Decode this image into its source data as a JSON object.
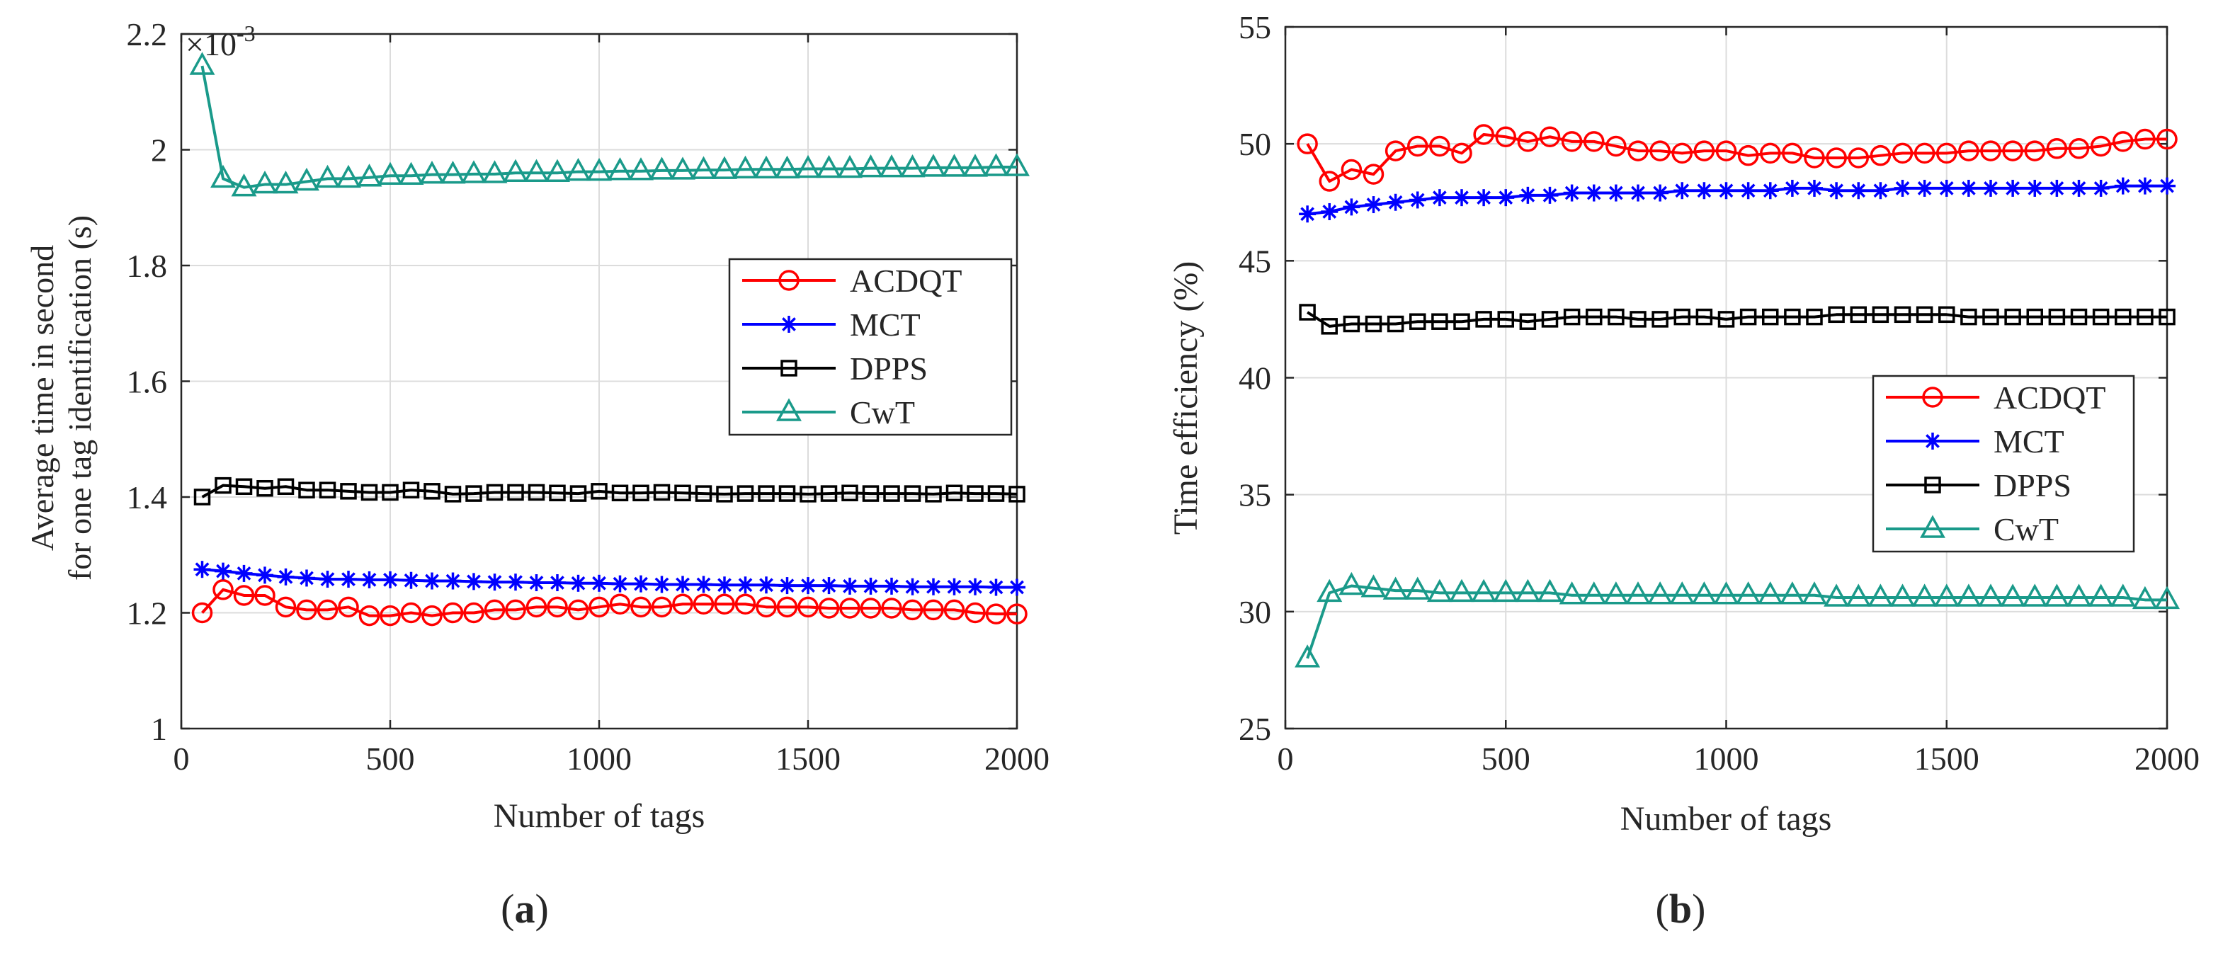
{
  "colors": {
    "ACDQT": "#ff0000",
    "MCT": "#0000ff",
    "DPPS": "#000000",
    "CwT": "#1a9a8a",
    "axis": "#262626",
    "grid": "#dcdcdc"
  },
  "chart_data": [
    {
      "type": "line",
      "panel_label": "a",
      "xlabel": "Number of tags",
      "ylabel_lines": [
        "Average time in second",
        "for one tag identification (s)"
      ],
      "y_exponent_label": "×10",
      "y_exponent_power": "-3",
      "xlim": [
        0,
        2000
      ],
      "ylim": [
        1.0,
        2.2
      ],
      "grid": true,
      "legend_position": "right-middle",
      "x_ticks": [
        0,
        500,
        1000,
        1500,
        2000
      ],
      "x_tick_labels": [
        "0",
        "500",
        "1000",
        "1500",
        "2000"
      ],
      "y_ticks": [
        1.0,
        1.2,
        1.4,
        1.6,
        1.8,
        2.0,
        2.2
      ],
      "y_tick_labels": [
        "1",
        "1.2",
        "1.4",
        "1.6",
        "1.8",
        "2",
        "2.2"
      ],
      "x": [
        50,
        100,
        150,
        200,
        250,
        300,
        350,
        400,
        450,
        500,
        550,
        600,
        650,
        700,
        750,
        800,
        850,
        900,
        950,
        1000,
        1050,
        1100,
        1150,
        1200,
        1250,
        1300,
        1350,
        1400,
        1450,
        1500,
        1550,
        1600,
        1650,
        1700,
        1750,
        1800,
        1850,
        1900,
        1950,
        2000
      ],
      "series": [
        {
          "name": "ACDQT",
          "marker": "circle",
          "values": [
            1.2,
            1.24,
            1.23,
            1.23,
            1.21,
            1.205,
            1.205,
            1.21,
            1.195,
            1.195,
            1.2,
            1.195,
            1.2,
            1.2,
            1.205,
            1.205,
            1.21,
            1.21,
            1.205,
            1.21,
            1.215,
            1.21,
            1.21,
            1.215,
            1.215,
            1.215,
            1.215,
            1.21,
            1.21,
            1.21,
            1.208,
            1.208,
            1.208,
            1.208,
            1.205,
            1.205,
            1.205,
            1.2,
            1.198,
            1.198
          ]
        },
        {
          "name": "MCT",
          "marker": "star",
          "values": [
            1.275,
            1.272,
            1.268,
            1.265,
            1.262,
            1.26,
            1.258,
            1.258,
            1.257,
            1.257,
            1.256,
            1.255,
            1.255,
            1.254,
            1.253,
            1.253,
            1.252,
            1.252,
            1.251,
            1.251,
            1.25,
            1.25,
            1.249,
            1.249,
            1.249,
            1.248,
            1.248,
            1.248,
            1.247,
            1.247,
            1.247,
            1.246,
            1.246,
            1.246,
            1.245,
            1.245,
            1.245,
            1.245,
            1.244,
            1.244
          ]
        },
        {
          "name": "DPPS",
          "marker": "square",
          "values": [
            1.4,
            1.42,
            1.418,
            1.415,
            1.418,
            1.412,
            1.412,
            1.41,
            1.408,
            1.408,
            1.412,
            1.41,
            1.405,
            1.406,
            1.408,
            1.408,
            1.408,
            1.407,
            1.406,
            1.41,
            1.407,
            1.407,
            1.408,
            1.407,
            1.406,
            1.405,
            1.406,
            1.406,
            1.406,
            1.405,
            1.406,
            1.407,
            1.406,
            1.406,
            1.406,
            1.405,
            1.407,
            1.406,
            1.406,
            1.405
          ]
        },
        {
          "name": "CwT",
          "marker": "triangle",
          "values": [
            2.145,
            1.95,
            1.935,
            1.94,
            1.94,
            1.945,
            1.95,
            1.95,
            1.952,
            1.955,
            1.955,
            1.957,
            1.957,
            1.958,
            1.958,
            1.96,
            1.96,
            1.96,
            1.962,
            1.962,
            1.963,
            1.963,
            1.964,
            1.964,
            1.965,
            1.965,
            1.966,
            1.966,
            1.966,
            1.967,
            1.967,
            1.967,
            1.968,
            1.968,
            1.968,
            1.969,
            1.969,
            1.969,
            1.97,
            1.97
          ]
        }
      ]
    },
    {
      "type": "line",
      "panel_label": "b",
      "xlabel": "Number of tags",
      "ylabel_lines": [
        "Time efficiency (%)"
      ],
      "xlim": [
        0,
        2000
      ],
      "ylim": [
        25,
        55
      ],
      "grid": true,
      "legend_position": "right-middle",
      "x_ticks": [
        0,
        500,
        1000,
        1500,
        2000
      ],
      "x_tick_labels": [
        "0",
        "500",
        "1000",
        "1500",
        "2000"
      ],
      "y_ticks": [
        25,
        30,
        35,
        40,
        45,
        50,
        55
      ],
      "y_tick_labels": [
        "25",
        "30",
        "35",
        "40",
        "45",
        "50",
        "55"
      ],
      "x": [
        50,
        100,
        150,
        200,
        250,
        300,
        350,
        400,
        450,
        500,
        550,
        600,
        650,
        700,
        750,
        800,
        850,
        900,
        950,
        1000,
        1050,
        1100,
        1150,
        1200,
        1250,
        1300,
        1350,
        1400,
        1450,
        1500,
        1550,
        1600,
        1650,
        1700,
        1750,
        1800,
        1850,
        1900,
        1950,
        2000
      ],
      "series": [
        {
          "name": "ACDQT",
          "marker": "circle",
          "values": [
            50.0,
            48.4,
            48.9,
            48.7,
            49.7,
            49.9,
            49.9,
            49.6,
            50.4,
            50.3,
            50.1,
            50.3,
            50.1,
            50.1,
            49.9,
            49.7,
            49.7,
            49.6,
            49.7,
            49.7,
            49.5,
            49.6,
            49.6,
            49.4,
            49.4,
            49.4,
            49.5,
            49.6,
            49.6,
            49.6,
            49.7,
            49.7,
            49.7,
            49.7,
            49.8,
            49.8,
            49.9,
            50.1,
            50.2,
            50.2
          ]
        },
        {
          "name": "MCT",
          "marker": "star",
          "values": [
            47.0,
            47.1,
            47.3,
            47.4,
            47.5,
            47.6,
            47.7,
            47.7,
            47.7,
            47.7,
            47.8,
            47.8,
            47.9,
            47.9,
            47.9,
            47.9,
            47.9,
            48.0,
            48.0,
            48.0,
            48.0,
            48.0,
            48.1,
            48.1,
            48.0,
            48.0,
            48.0,
            48.1,
            48.1,
            48.1,
            48.1,
            48.1,
            48.1,
            48.1,
            48.1,
            48.1,
            48.1,
            48.2,
            48.2,
            48.2
          ]
        },
        {
          "name": "DPPS",
          "marker": "square",
          "values": [
            42.8,
            42.2,
            42.3,
            42.3,
            42.3,
            42.4,
            42.4,
            42.4,
            42.5,
            42.5,
            42.4,
            42.5,
            42.6,
            42.6,
            42.6,
            42.5,
            42.5,
            42.6,
            42.6,
            42.5,
            42.6,
            42.6,
            42.6,
            42.6,
            42.7,
            42.7,
            42.7,
            42.7,
            42.7,
            42.7,
            42.6,
            42.6,
            42.6,
            42.6,
            42.6,
            42.6,
            42.6,
            42.6,
            42.6,
            42.6
          ]
        },
        {
          "name": "CwT",
          "marker": "triangle",
          "values": [
            28.0,
            30.8,
            31.1,
            31.0,
            30.9,
            30.9,
            30.8,
            30.8,
            30.8,
            30.8,
            30.8,
            30.8,
            30.7,
            30.7,
            30.7,
            30.7,
            30.7,
            30.7,
            30.7,
            30.7,
            30.7,
            30.7,
            30.7,
            30.7,
            30.6,
            30.6,
            30.6,
            30.6,
            30.6,
            30.6,
            30.6,
            30.6,
            30.6,
            30.6,
            30.6,
            30.6,
            30.6,
            30.6,
            30.5,
            30.5
          ]
        }
      ]
    }
  ]
}
